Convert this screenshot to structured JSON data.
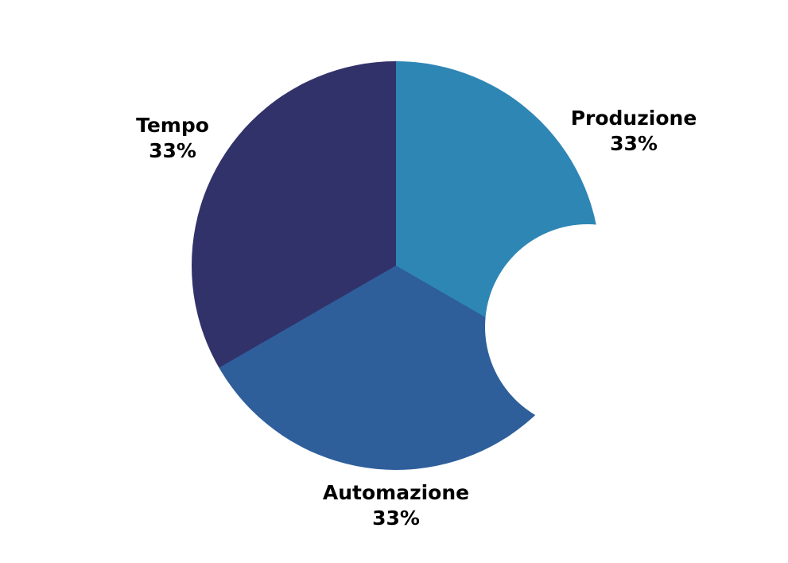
{
  "chart_data": {
    "type": "pie",
    "subtype": "donut",
    "title": "",
    "categories": [
      "Produzione",
      "Automazione",
      "Tempo"
    ],
    "values": [
      33,
      33,
      33
    ],
    "slices": [
      {
        "label": "Produzione",
        "value": 33,
        "display_pct": "33%",
        "color": "#2E86B5"
      },
      {
        "label": "Automazione",
        "value": 33,
        "display_pct": "33%",
        "color": "#2E5F9B"
      },
      {
        "label": "Tempo",
        "value": 33,
        "display_pct": "33%",
        "color": "#32326B"
      }
    ],
    "start_angle_deg": 0,
    "direction": "clockwise",
    "donut_hole_ratio": 0.5,
    "legend": "none",
    "labels_position": "outside",
    "label_color": "#000000",
    "background_color": "#FFFFFF"
  }
}
